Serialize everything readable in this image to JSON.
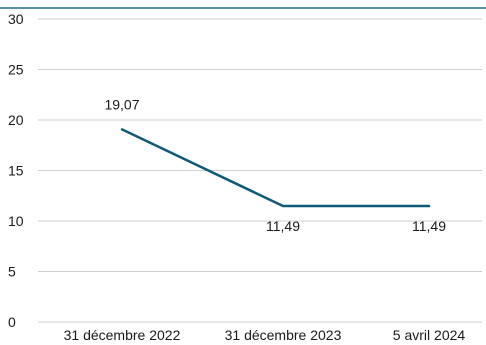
{
  "chart_data": {
    "type": "line",
    "categories": [
      "31 décembre 2022",
      "31 décembre 2023",
      "5 avril 2024"
    ],
    "series": [
      {
        "values": [
          19.07,
          11.49,
          11.49
        ]
      }
    ],
    "data_labels": [
      "19,07",
      "11,49",
      "11,49"
    ],
    "y_ticks": [
      0,
      5,
      10,
      15,
      20,
      25,
      30
    ],
    "ylim": [
      0,
      30
    ],
    "grid": true,
    "legend": "none",
    "colors": {
      "line": "#0f5a78",
      "top_border": "#1f6b8a",
      "grid": "#cfcfcf"
    }
  }
}
